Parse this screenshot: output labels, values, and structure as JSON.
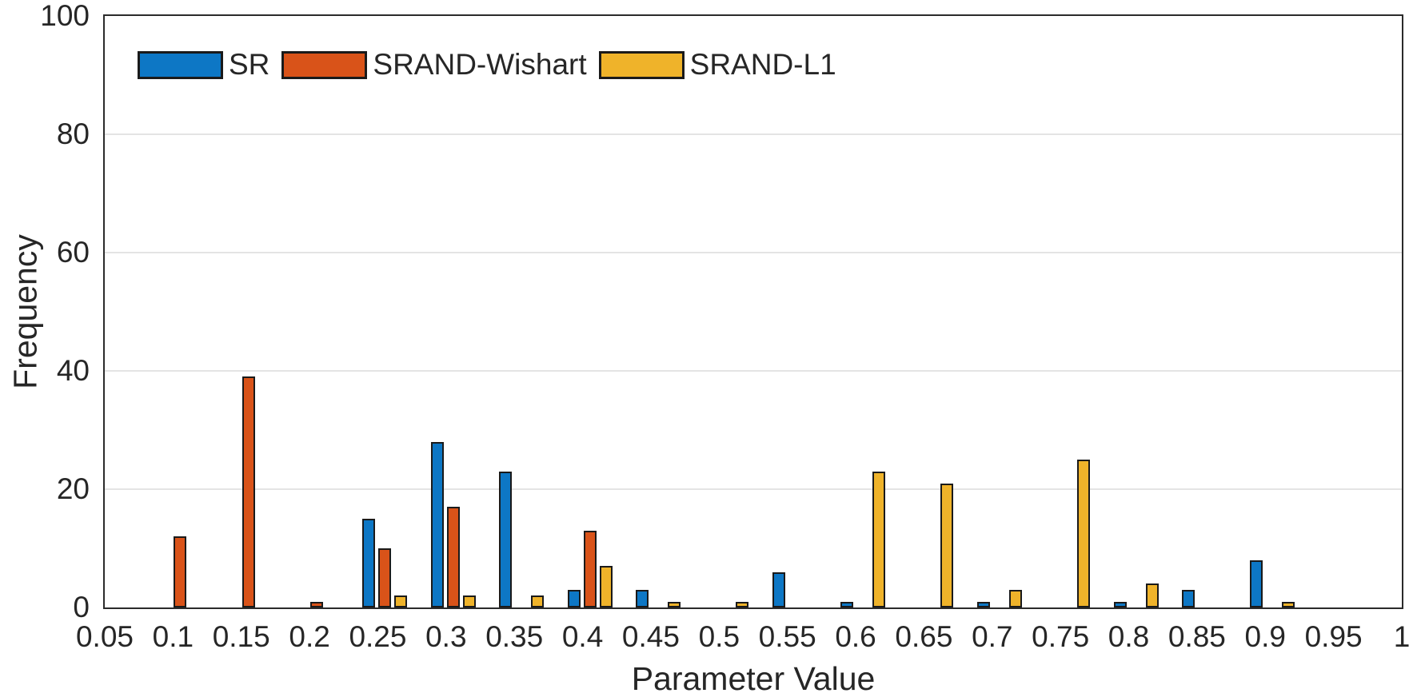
{
  "chart_data": {
    "type": "bar",
    "title": "",
    "xlabel": "Parameter Value",
    "ylabel": "Frequency",
    "ylim": [
      0,
      100
    ],
    "yticks": [
      0,
      20,
      40,
      60,
      80,
      100
    ],
    "grid": "horizontal",
    "legend_position": "top-left-inside",
    "bar_edge_color": "#1a1a1a",
    "categories": [
      "0.05",
      "0.1",
      "0.15",
      "0.2",
      "0.25",
      "0.3",
      "0.35",
      "0.4",
      "0.45",
      "0.5",
      "0.55",
      "0.6",
      "0.65",
      "0.7",
      "0.75",
      "0.8",
      "0.85",
      "0.9",
      "0.95",
      "1"
    ],
    "series": [
      {
        "name": "SR",
        "color": "#0d77c5",
        "values": [
          0,
          0,
          0,
          0,
          15,
          28,
          23,
          3,
          3,
          0,
          6,
          1,
          0,
          1,
          0,
          1,
          3,
          8,
          0,
          0
        ]
      },
      {
        "name": "SRAND-Wishart",
        "color": "#d95319",
        "values": [
          0,
          12,
          39,
          1,
          10,
          17,
          0,
          13,
          0,
          0,
          0,
          0,
          0,
          0,
          0,
          0,
          0,
          0,
          0,
          0
        ]
      },
      {
        "name": "SRAND-L1",
        "color": "#efb32a",
        "values": [
          0,
          0,
          0,
          0,
          2,
          2,
          2,
          7,
          1,
          1,
          0,
          23,
          21,
          3,
          25,
          4,
          0,
          1,
          0,
          0
        ]
      }
    ]
  }
}
